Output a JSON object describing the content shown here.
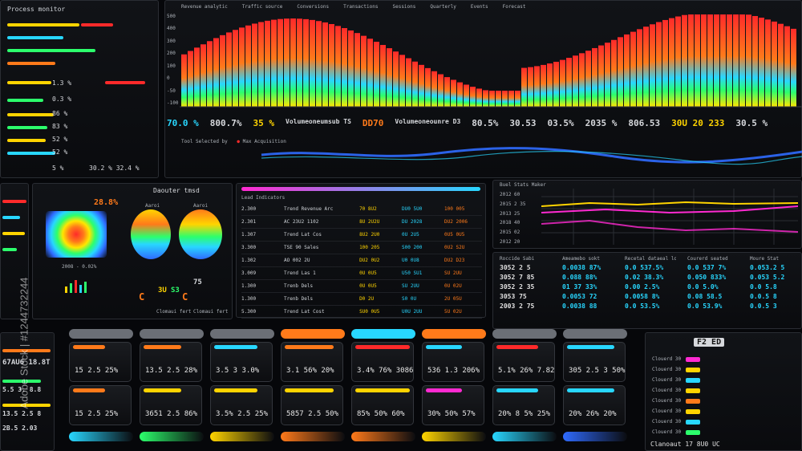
{
  "top_chart": {
    "legend": [
      "Revenue analytic",
      "Traffic source",
      "Conversions",
      "Transactions",
      "Sessions",
      "Quarterly",
      "Events",
      "Forecast"
    ],
    "legend_colors": [
      "#ffd400",
      "#6be4ff",
      "#ffd400",
      "#6be4ff",
      "#ffd400",
      "#ffd400",
      "#ffd400",
      "#ffd400"
    ],
    "y_ticks": [
      "500",
      "400",
      "300",
      "200",
      "100",
      "0",
      "-50",
      "-100"
    ],
    "metrics": [
      "70.0 %",
      "800.7%",
      "35 %",
      "Volumeoneumsub TS",
      "DD70",
      "Volumeoneounre D3",
      "80.5%",
      "30.53",
      "03.5%",
      "2035 %",
      "806.53",
      "30U 20 233",
      "30.5 %"
    ]
  },
  "sub_wave": {
    "label1": "Tool Selected by",
    "label2": "Max Acquisition"
  },
  "left_panel": {
    "header": "Process monitor",
    "rows": [
      "1.3 %",
      "0.3 %",
      "86 %",
      "83 %",
      "52 %",
      "52 %",
      "5 %"
    ],
    "footer": "30.2 %  32.4 %"
  },
  "gauge_panel": {
    "title": "Daouter tmsd",
    "value": "28.8%",
    "legend": "2008 - 0.02%",
    "sub1": "Aaroi",
    "sub2": "Aaroi",
    "v1": "3U",
    "v2": "S3",
    "v3": "75",
    "c1": "C",
    "c2": "C",
    "f1": "Clomaui fert",
    "f2": "Clomaui fert"
  },
  "table_panel": {
    "title": "Lead Indicators",
    "rows": [
      [
        "2.300",
        "Trend Revenue Arc",
        "70 8U2",
        "DU0 5U0",
        "100 005"
      ],
      [
        "2.301",
        "AC 23U2 1102",
        "8U 2U2U",
        "DU 2028",
        "DU2 2006"
      ],
      [
        "1.307",
        "Trend Lat Cos",
        "8U2 2U0",
        "0U 2U5",
        "0U5 0U5"
      ],
      [
        "3.300",
        "TSE 90 Sales",
        "100 205",
        "S00 200",
        "0U2 S2U"
      ],
      [
        "1.302",
        "AO 002 2U",
        "DU2 0U2",
        "U0 0U8",
        "DU2 D23"
      ],
      [
        "3.009",
        "Trend Las 1",
        "0U 0U5",
        "U50 SU1",
        "SU 2UU"
      ],
      [
        "1.300",
        "Trenb Dels",
        "0U 0U5",
        "SU 2UU",
        "0U 02U"
      ],
      [
        "1.300",
        "Trenb Dels",
        "D0 2U",
        "S0 0U",
        "2U 05U"
      ],
      [
        "5.300",
        "Trend Lat Cost",
        "SU0 0U5",
        "U0U 2UU",
        "5U 02U"
      ]
    ]
  },
  "line_chart": {
    "title": "Buel Stats Maker",
    "y_ticks": [
      "2012 60",
      "2015 2 35",
      "2013 25",
      "2018 40",
      "2015 02",
      "2012 20"
    ]
  },
  "stat_grid": {
    "headers": [
      "Roccide Sabi",
      "Ameamebo sokt",
      "Recetal dataeal loo",
      "Courerd seated",
      "Moure Stat"
    ],
    "cols": [
      [
        "3052 2 5",
        "3052 7 85",
        "3052 2 35",
        "3053 75",
        "2003 2 75"
      ],
      [
        "0.0038 87%",
        "0.088 88%",
        "01 37 33%",
        "0.0053 72",
        "0.0038 88"
      ],
      [
        "0.0 537.5%",
        "0.02 38.3%",
        "0.00 2.5%",
        "0.0058 8%",
        "0.0 53.5%"
      ],
      [
        "0.0 537 7%",
        "0.050 833%",
        "0.0 5.0%",
        "0.08 58.5",
        "0.0 53.9%"
      ],
      [
        "0.053.2 5",
        "0.053 5.2",
        "0.0 5.8",
        "0.0.5 8",
        "0.0.5 3"
      ]
    ]
  },
  "cards_row1": [
    "15 2.5  25%",
    "13.5 2.5  28%",
    "3.5 3 3.0%",
    "3.1  56%  20%",
    "3.4%  76% 3086",
    "536 1.3  206%",
    "5.1%  26%  7.82",
    "305 2.5 3 50%"
  ],
  "cards_row2": [
    "15 2.5  25%",
    "3651  2.5  86%",
    "3.5% 2.5  25%",
    "5857  2.5  50%",
    "85%  50%  60%",
    "30%  50%  57%",
    "20%  8 5%  25%",
    "20%  26%  20%"
  ],
  "bottom_left": {
    "values": [
      "67AU6 18.8T",
      "5.5 3. 8.8",
      "13.5 2.5 8",
      "2B.5 2.03"
    ]
  },
  "bottom_right": {
    "header": "F2 ED",
    "rows": [
      "Clouerd 30",
      "Clouerd 30",
      "Clouerd 30",
      "Clouerd 30",
      "Clouerd 30",
      "Clouerd 30",
      "Clouerd 30",
      "Clouerd 30"
    ],
    "footer": "Clanoaut 17 8U0 UC"
  },
  "watermark": "Adobe Stock | #1244732244",
  "colors": {
    "yellow": "#ffd400",
    "cyan": "#28d7ff",
    "orange": "#ff7a1a",
    "red": "#ff2a2a",
    "green": "#2cff6c",
    "magenta": "#ff2ad1",
    "blue": "#2f6bff"
  }
}
